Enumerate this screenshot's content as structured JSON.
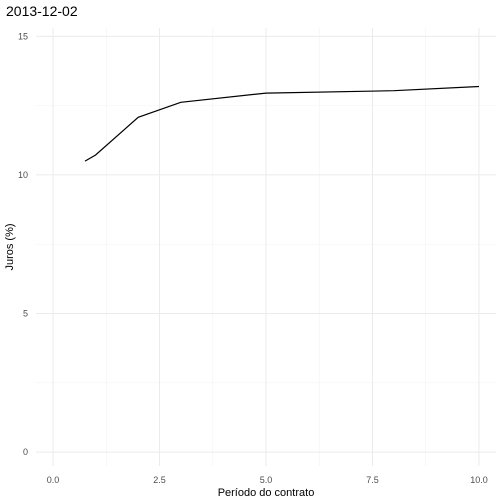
{
  "chart_data": {
    "type": "line",
    "title": "2013-12-02",
    "xlabel": "Período do contrato",
    "ylabel": "Juros (%)",
    "xlim": [
      -0.4,
      10.4
    ],
    "ylim": [
      -0.5,
      15.3
    ],
    "x_ticks": [
      0,
      2.5,
      5,
      7.5,
      10
    ],
    "x_tick_labels": [
      "0.0",
      "2.5",
      "5.0",
      "7.5",
      "10.0"
    ],
    "y_ticks": [
      0,
      5,
      10,
      15
    ],
    "y_tick_labels": [
      "0",
      "5",
      "10",
      "15"
    ],
    "grid": true,
    "series": [
      {
        "x": [
          0.75,
          1,
          2,
          3,
          5,
          8,
          10
        ],
        "y": [
          10.5,
          10.72,
          12.08,
          12.62,
          12.95,
          13.04,
          13.19
        ]
      }
    ]
  }
}
